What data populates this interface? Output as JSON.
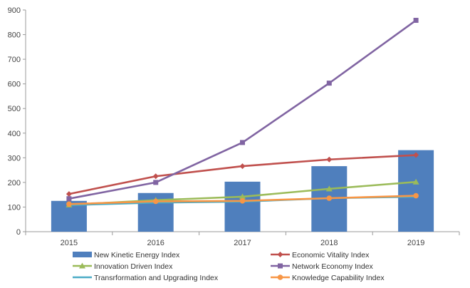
{
  "chart_data": {
    "type": "bar",
    "categories": [
      "2015",
      "2016",
      "2017",
      "2018",
      "2019"
    ],
    "ylim": [
      0,
      900
    ],
    "yticks": [
      "0",
      "100",
      "200",
      "300",
      "400",
      "500",
      "600",
      "700",
      "800",
      "900"
    ],
    "grid": false,
    "legend_position": "bottom",
    "bar_series": {
      "name": "New Kinetic Energy Index",
      "color": "#4f7fbd",
      "values": [
        125,
        157,
        203,
        266,
        331
      ]
    },
    "line_series": [
      {
        "name": "Economic Vitality Index",
        "color": "#c0504d",
        "marker": "diamond",
        "values": [
          153,
          225,
          266,
          293,
          311
        ]
      },
      {
        "name": "Innovation Driven Index",
        "color": "#9bbb59",
        "marker": "triangle",
        "values": [
          109,
          128,
          142,
          174,
          202
        ]
      },
      {
        "name": "Network Economy Index",
        "color": "#8064a2",
        "marker": "square",
        "values": [
          134,
          200,
          362,
          603,
          858
        ]
      },
      {
        "name": "Transrformation and Upgrading Index",
        "color": "#4bacc6",
        "marker": "none",
        "values": [
          108,
          118,
          122,
          136,
          142
        ]
      },
      {
        "name": "Knowledge Capability Index",
        "color": "#f79646",
        "marker": "circle",
        "values": [
          112,
          123,
          125,
          136,
          146
        ]
      }
    ]
  }
}
